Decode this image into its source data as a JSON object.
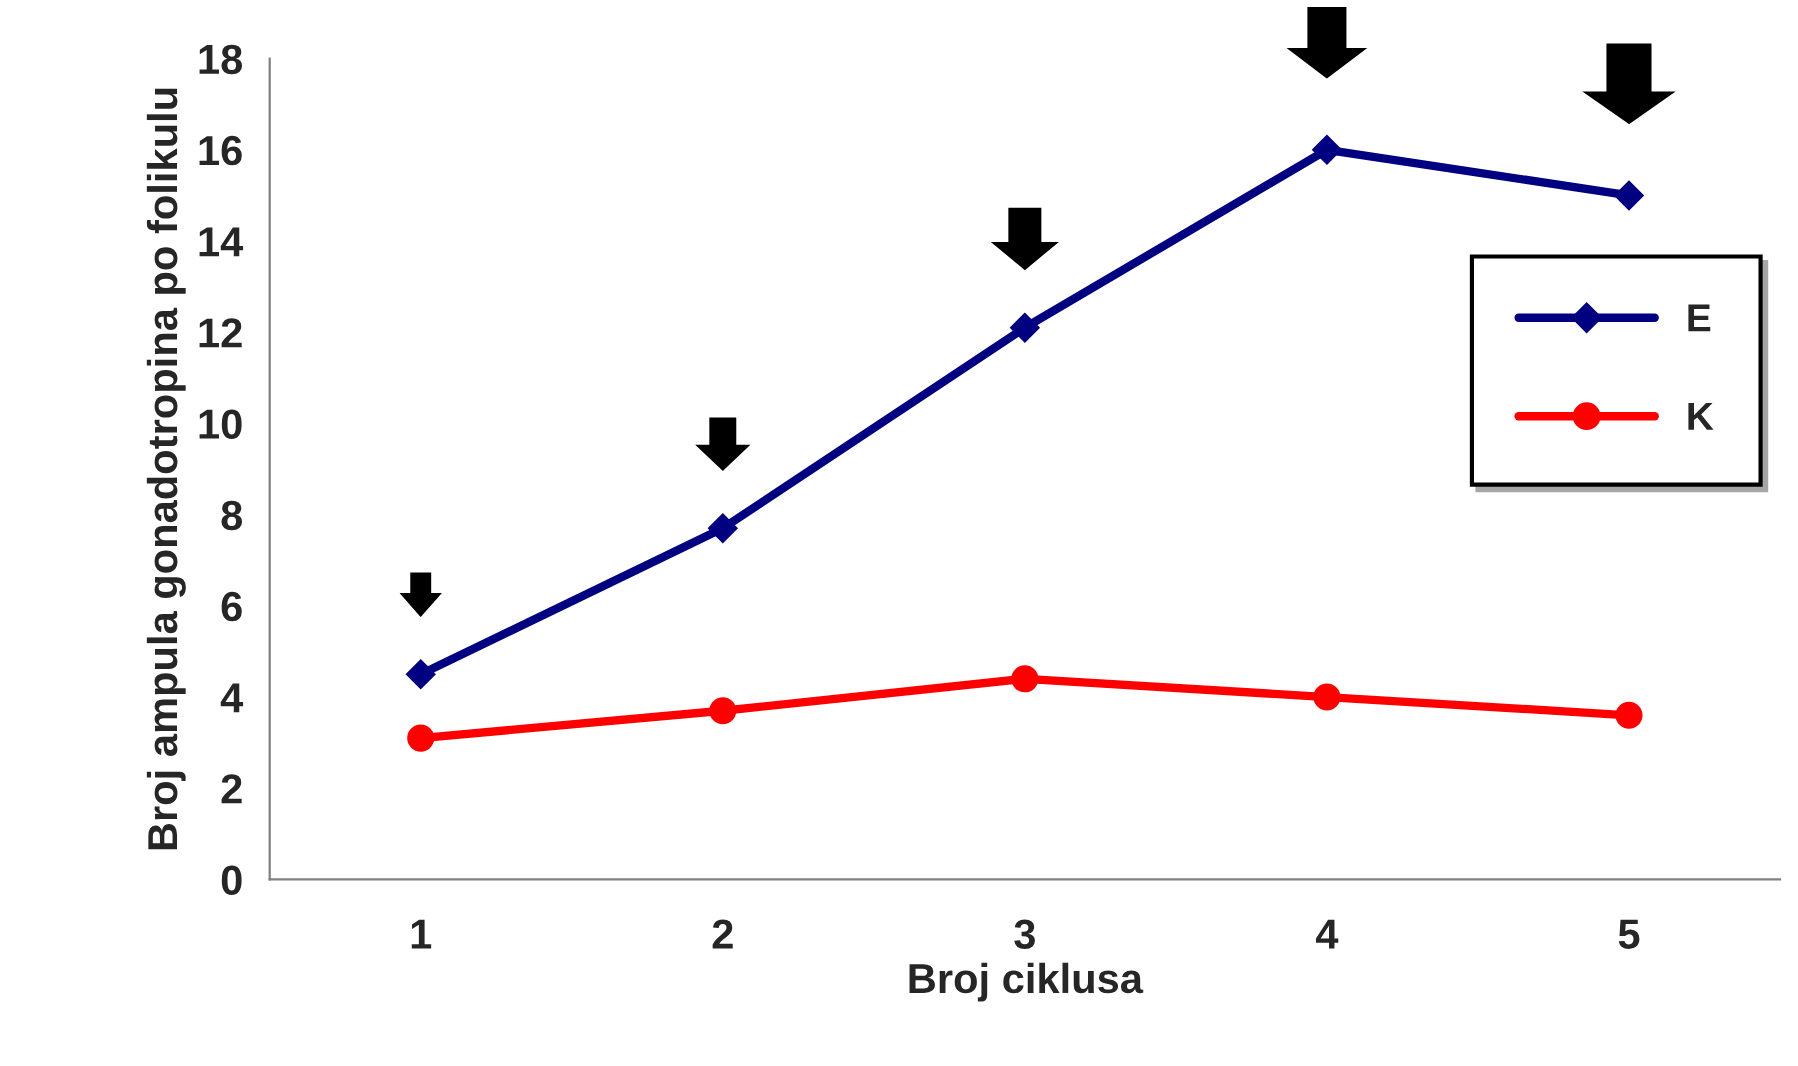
{
  "chart_data": {
    "type": "line",
    "xlabel": "Broj ciklusa",
    "ylabel": "Broj ampula gonadotropina po folikulu",
    "categories": [
      "1",
      "2",
      "3",
      "4",
      "5"
    ],
    "series": [
      {
        "name": "E",
        "color": "#000080",
        "values": [
          4.5,
          7.7,
          12.1,
          16.0,
          15.0
        ],
        "marker": "diamond"
      },
      {
        "name": "K",
        "color": "#ff0000",
        "values": [
          3.1,
          3.7,
          4.4,
          4.0,
          3.6
        ],
        "marker": "circle"
      }
    ],
    "ylim": [
      0,
      18
    ],
    "yticks": [
      0,
      2,
      4,
      6,
      8,
      10,
      12,
      14,
      16,
      18
    ],
    "grid": false,
    "legend": "right",
    "line_style": "solid"
  }
}
